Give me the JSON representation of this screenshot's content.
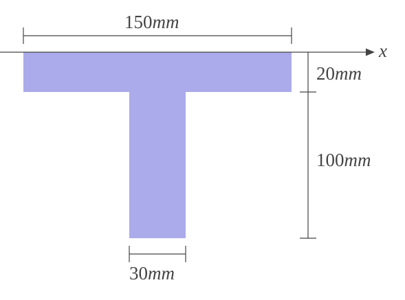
{
  "colors": {
    "section_fill": "#ababeb",
    "line": "#444444",
    "background": "#ffffff"
  },
  "axis": {
    "label": "x"
  },
  "dimensions": {
    "flange_width": {
      "value": "150",
      "unit": "mm"
    },
    "flange_thickness": {
      "value": "20",
      "unit": "mm"
    },
    "web_height": {
      "value": "100",
      "unit": "mm"
    },
    "web_width": {
      "value": "30",
      "unit": "mm"
    }
  }
}
